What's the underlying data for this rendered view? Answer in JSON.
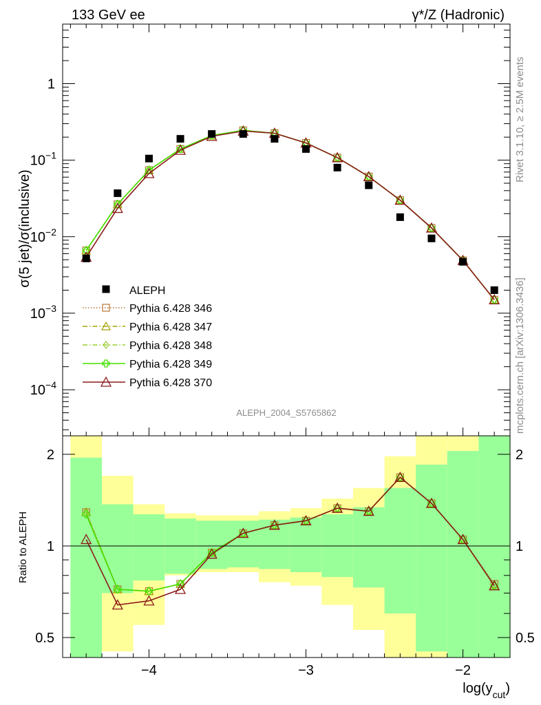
{
  "header": {
    "left": "133 GeV ee",
    "right": "γ*/Z (Hadronic)"
  },
  "side": {
    "top": "Rivet 3.1.10, ≥ 2.5M events",
    "bottom": "mcplots.cern.ch [arXiv:1306.3436]"
  },
  "chart_data": [
    {
      "type": "line",
      "title": "",
      "analysis_label": "ALEPH_2004_S5765862",
      "xlabel_main": "log(y",
      "xlabel_sub": "cut",
      "xlabel_close": ")",
      "ylabel": "σ(5 jet)/σ(inclusive)",
      "yscale": "log",
      "xlim": [
        -4.55,
        -1.7
      ],
      "ylim": [
        2.5e-05,
        6
      ],
      "x_ticks": [
        "−4",
        "−3",
        "−2"
      ],
      "y_ticks": [
        {
          "base": "10",
          "exp": "−4",
          "value": 0.0001
        },
        {
          "base": "10",
          "exp": "−3",
          "value": 0.001
        },
        {
          "base": "10",
          "exp": "−2",
          "value": 0.01
        },
        {
          "base": "10",
          "exp": "−1",
          "value": 0.1
        },
        {
          "base": "1",
          "exp": "",
          "value": 1
        }
      ],
      "x": [
        -4.4,
        -4.2,
        -4.0,
        -3.8,
        -3.6,
        -3.4,
        -3.2,
        -3.0,
        -2.8,
        -2.6,
        -2.4,
        -2.2,
        -2.0,
        -1.8
      ],
      "data": {
        "name": "ALEPH",
        "values": [
          0.0052,
          0.037,
          0.105,
          0.19,
          0.22,
          0.22,
          0.19,
          0.14,
          0.08,
          0.047,
          0.018,
          0.0095,
          0.0047,
          0.002
        ]
      },
      "series": [
        {
          "name": "Pythia 6.428 346",
          "color": "#b87333",
          "style": "dotted",
          "marker": "square",
          "values": [
            0.0066,
            0.0265,
            0.074,
            0.14,
            0.21,
            0.245,
            0.225,
            0.168,
            0.108,
            0.061,
            0.03,
            0.013,
            0.0049,
            0.0015
          ]
        },
        {
          "name": "Pythia 6.428 347",
          "color": "#a3a300",
          "style": "dashdot",
          "marker": "triangle",
          "values": [
            0.0066,
            0.0265,
            0.074,
            0.14,
            0.21,
            0.245,
            0.225,
            0.168,
            0.108,
            0.061,
            0.03,
            0.013,
            0.0049,
            0.0015
          ]
        },
        {
          "name": "Pythia 6.428 348",
          "color": "#9acd32",
          "style": "dashdot",
          "marker": "diamond",
          "values": [
            0.0066,
            0.0265,
            0.074,
            0.14,
            0.21,
            0.245,
            0.225,
            0.168,
            0.108,
            0.061,
            0.03,
            0.013,
            0.0049,
            0.0015
          ]
        },
        {
          "name": "Pythia 6.428 349",
          "color": "#44e000",
          "style": "solid",
          "marker": "cross",
          "values": [
            0.0066,
            0.0265,
            0.074,
            0.14,
            0.21,
            0.245,
            0.225,
            0.168,
            0.108,
            0.061,
            0.03,
            0.013,
            0.0049,
            0.0015
          ]
        },
        {
          "name": "Pythia 6.428 370",
          "color": "#8b1a1a",
          "style": "solid",
          "marker": "triangle-open",
          "values": [
            0.0054,
            0.0235,
            0.067,
            0.135,
            0.205,
            0.24,
            0.225,
            0.168,
            0.108,
            0.061,
            0.03,
            0.013,
            0.0049,
            0.0015
          ]
        }
      ]
    },
    {
      "type": "line",
      "title": "",
      "ylabel": "Ratio to ALEPH",
      "yscale": "log",
      "ylim": [
        0.43,
        2.3
      ],
      "y_ticks": [
        {
          "label": "0.5",
          "value": 0.5
        },
        {
          "label": "1",
          "value": 1
        },
        {
          "label": "2",
          "value": 2
        }
      ],
      "bins": [
        [
          -4.5,
          -4.3
        ],
        [
          -4.3,
          -4.1
        ],
        [
          -4.1,
          -3.9
        ],
        [
          -3.9,
          -3.7
        ],
        [
          -3.7,
          -3.5
        ],
        [
          -3.5,
          -3.3
        ],
        [
          -3.3,
          -3.1
        ],
        [
          -3.1,
          -2.9
        ],
        [
          -2.9,
          -2.7
        ],
        [
          -2.7,
          -2.5
        ],
        [
          -2.5,
          -2.3
        ],
        [
          -2.3,
          -2.1
        ],
        [
          -2.1,
          -1.9
        ],
        [
          -1.9,
          -1.7
        ]
      ],
      "band_inner": [
        [
          0.3,
          1.95
        ],
        [
          0.7,
          1.37
        ],
        [
          0.77,
          1.27
        ],
        [
          0.81,
          1.23
        ],
        [
          0.84,
          1.21
        ],
        [
          0.85,
          1.21
        ],
        [
          0.84,
          1.22
        ],
        [
          0.82,
          1.24
        ],
        [
          0.79,
          1.27
        ],
        [
          0.73,
          1.34
        ],
        [
          0.6,
          1.55
        ],
        [
          0.45,
          1.85
        ],
        [
          0.35,
          2.05
        ],
        [
          0.3,
          2.5
        ]
      ],
      "band_outer": [
        [
          0.2,
          3.0
        ],
        [
          0.45,
          1.7
        ],
        [
          0.55,
          1.37
        ],
        [
          0.8,
          1.28
        ],
        [
          0.82,
          1.26
        ],
        [
          0.82,
          1.26
        ],
        [
          0.76,
          1.3
        ],
        [
          0.74,
          1.33
        ],
        [
          0.64,
          1.43
        ],
        [
          0.53,
          1.55
        ],
        [
          0.41,
          1.97
        ],
        [
          0.3,
          2.45
        ],
        [
          0.3,
          3.0
        ],
        [
          0.3,
          3.0
        ]
      ],
      "series": [
        {
          "name": "Pythia 6.428 346",
          "values": [
            1.29,
            0.72,
            0.71,
            0.75,
            0.95,
            1.1,
            1.17,
            1.21,
            1.33,
            1.3,
            1.68,
            1.38,
            1.05,
            0.75
          ]
        },
        {
          "name": "Pythia 6.428 347",
          "values": [
            1.29,
            0.72,
            0.71,
            0.75,
            0.95,
            1.1,
            1.17,
            1.21,
            1.33,
            1.3,
            1.68,
            1.38,
            1.05,
            0.74
          ]
        },
        {
          "name": "Pythia 6.428 348",
          "values": [
            1.28,
            0.72,
            0.71,
            0.75,
            0.95,
            1.1,
            1.17,
            1.21,
            1.33,
            1.3,
            1.68,
            1.38,
            1.05,
            0.74
          ]
        },
        {
          "name": "Pythia 6.428 349",
          "values": [
            1.27,
            0.72,
            0.71,
            0.75,
            0.95,
            1.1,
            1.17,
            1.21,
            1.33,
            1.3,
            1.68,
            1.38,
            1.05,
            0.74
          ]
        },
        {
          "name": "Pythia 6.428 370",
          "values": [
            1.05,
            0.64,
            0.66,
            0.72,
            0.94,
            1.1,
            1.17,
            1.21,
            1.33,
            1.3,
            1.68,
            1.38,
            1.05,
            0.74
          ]
        }
      ]
    }
  ]
}
